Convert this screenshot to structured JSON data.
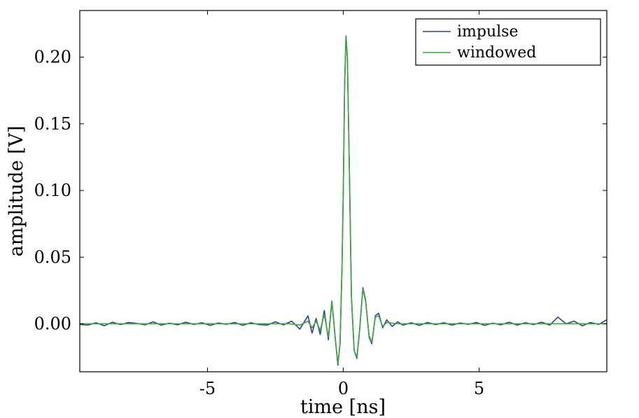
{
  "chart_data": {
    "type": "line",
    "xlabel": "time [ns]",
    "ylabel": "amplitude [V]",
    "xlim": [
      -9.7,
      9.7
    ],
    "ylim": [
      -0.036,
      0.235
    ],
    "xticks": [
      -5,
      0,
      5
    ],
    "xtick_labels": [
      "-5",
      "0",
      "5"
    ],
    "yticks": [
      0.0,
      0.05,
      0.1,
      0.15,
      0.2
    ],
    "ytick_labels": [
      "0.00",
      "0.05",
      "0.10",
      "0.15",
      "0.20"
    ],
    "grid": false,
    "legend_position": "top-right",
    "series": [
      {
        "name": "impulse",
        "color": "#2f3f9f",
        "x": [
          -9.7,
          -9.4,
          -9.1,
          -8.8,
          -8.5,
          -8.2,
          -7.9,
          -7.6,
          -7.3,
          -7.0,
          -6.7,
          -6.4,
          -6.1,
          -5.8,
          -5.5,
          -5.2,
          -4.9,
          -4.6,
          -4.3,
          -4.0,
          -3.7,
          -3.4,
          -3.1,
          -2.8,
          -2.5,
          -2.2,
          -1.9,
          -1.6,
          -1.3,
          -1.15,
          -1.0,
          -0.85,
          -0.7,
          -0.55,
          -0.42,
          -0.3,
          -0.2,
          -0.12,
          -0.05,
          0.0,
          0.05,
          0.1,
          0.15,
          0.22,
          0.3,
          0.4,
          0.5,
          0.6,
          0.72,
          0.82,
          0.95,
          1.05,
          1.18,
          1.3,
          1.45,
          1.6,
          1.8,
          2.0,
          2.2,
          2.5,
          2.8,
          3.1,
          3.4,
          3.7,
          4.0,
          4.3,
          4.6,
          4.9,
          5.2,
          5.5,
          5.8,
          6.1,
          6.4,
          6.7,
          7.0,
          7.3,
          7.6,
          7.9,
          8.2,
          8.5,
          8.8,
          9.1,
          9.4,
          9.7
        ],
        "y": [
          -0.0005,
          -0.001,
          0.0008,
          -0.0015,
          0.0012,
          -0.0006,
          0.001,
          0.0003,
          -0.0008,
          0.0015,
          -0.001,
          0.0005,
          -0.0008,
          0.0012,
          -0.0005,
          0.0008,
          -0.0012,
          0.0006,
          -0.0004,
          0.001,
          -0.0012,
          0.0008,
          -0.0006,
          -0.001,
          0.0015,
          -0.0008,
          0.002,
          -0.004,
          0.006,
          -0.007,
          0.004,
          -0.008,
          0.01,
          -0.012,
          0.017,
          -0.01,
          -0.031,
          -0.015,
          0.04,
          0.1,
          0.18,
          0.216,
          0.2,
          0.12,
          0.02,
          -0.02,
          -0.026,
          -0.005,
          0.027,
          0.018,
          -0.01,
          -0.015,
          0.006,
          0.008,
          -0.003,
          0.003,
          -0.002,
          0.0015,
          -0.001,
          0.0008,
          -0.0012,
          0.001,
          -0.0006,
          0.0008,
          -0.001,
          0.0006,
          -0.0004,
          0.001,
          -0.0012,
          0.0005,
          -0.0008,
          0.0012,
          -0.001,
          0.0008,
          -0.0006,
          0.0012,
          -0.001,
          0.005,
          0.0,
          0.002,
          -0.0015,
          0.001,
          -0.0005,
          0.003
        ]
      },
      {
        "name": "windowed",
        "color": "#3aa63a",
        "x": [
          -9.7,
          -2.0,
          -1.6,
          -1.3,
          -1.15,
          -1.0,
          -0.85,
          -0.7,
          -0.55,
          -0.42,
          -0.3,
          -0.2,
          -0.12,
          -0.05,
          0.0,
          0.05,
          0.1,
          0.15,
          0.22,
          0.3,
          0.4,
          0.5,
          0.6,
          0.72,
          0.82,
          0.95,
          1.05,
          1.18,
          1.3,
          1.45,
          1.6,
          2.0,
          9.7
        ],
        "y": [
          0.0,
          0.0,
          -0.001,
          0.002,
          -0.003,
          0.002,
          -0.005,
          0.007,
          -0.01,
          0.017,
          -0.01,
          -0.03,
          -0.015,
          0.04,
          0.1,
          0.18,
          0.216,
          0.2,
          0.12,
          0.02,
          -0.02,
          -0.025,
          -0.005,
          0.026,
          0.017,
          -0.009,
          -0.014,
          0.005,
          0.006,
          -0.002,
          0.001,
          0.0,
          0.0
        ]
      }
    ]
  }
}
